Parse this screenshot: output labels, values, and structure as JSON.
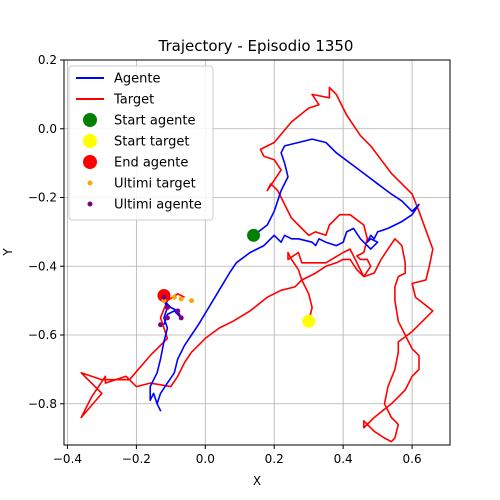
{
  "chart_data": {
    "type": "line",
    "title": "Trajectory - Episodio 1350",
    "xlabel": "X",
    "ylabel": "Y",
    "xlim": [
      -0.41,
      0.71
    ],
    "ylim": [
      -0.92,
      0.2
    ],
    "xticks": [
      -0.4,
      -0.2,
      0.0,
      0.2,
      0.4,
      0.6
    ],
    "xtick_labels": [
      "−0.4",
      "−0.2",
      "0.0",
      "0.2",
      "0.4",
      "0.6"
    ],
    "yticks": [
      0.2,
      0.0,
      -0.2,
      -0.4,
      -0.6,
      -0.8
    ],
    "ytick_labels": [
      "0.2",
      "0.0",
      "−0.2",
      "−0.4",
      "−0.6",
      "−0.8"
    ],
    "grid": true,
    "legend_position": "top-left",
    "series": [
      {
        "name": "Agente",
        "color": "#0000ff",
        "kind": "line",
        "points": [
          [
            0.14,
            -0.31
          ],
          [
            0.18,
            -0.28
          ],
          [
            0.2,
            -0.24
          ],
          [
            0.22,
            -0.18
          ],
          [
            0.24,
            -0.14
          ],
          [
            0.23,
            -0.1
          ],
          [
            0.22,
            -0.07
          ],
          [
            0.23,
            -0.05
          ],
          [
            0.27,
            -0.04
          ],
          [
            0.31,
            -0.03
          ],
          [
            0.35,
            -0.04
          ],
          [
            0.38,
            -0.07
          ],
          [
            0.42,
            -0.1
          ],
          [
            0.46,
            -0.13
          ],
          [
            0.5,
            -0.16
          ],
          [
            0.54,
            -0.19
          ],
          [
            0.57,
            -0.21
          ],
          [
            0.6,
            -0.24
          ],
          [
            0.62,
            -0.22
          ],
          [
            0.6,
            -0.25
          ],
          [
            0.57,
            -0.27
          ],
          [
            0.53,
            -0.29
          ],
          [
            0.5,
            -0.3
          ],
          [
            0.49,
            -0.32
          ],
          [
            0.48,
            -0.31
          ],
          [
            0.47,
            -0.33
          ],
          [
            0.48,
            -0.32
          ],
          [
            0.5,
            -0.33
          ],
          [
            0.48,
            -0.35
          ],
          [
            0.45,
            -0.32
          ],
          [
            0.43,
            -0.29
          ],
          [
            0.41,
            -0.3
          ],
          [
            0.4,
            -0.33
          ],
          [
            0.38,
            -0.34
          ],
          [
            0.35,
            -0.33
          ],
          [
            0.33,
            -0.32
          ],
          [
            0.32,
            -0.34
          ],
          [
            0.31,
            -0.33
          ],
          [
            0.27,
            -0.32
          ],
          [
            0.25,
            -0.32
          ],
          [
            0.23,
            -0.31
          ],
          [
            0.22,
            -0.33
          ],
          [
            0.2,
            -0.31
          ],
          [
            0.17,
            -0.34
          ],
          [
            0.13,
            -0.36
          ],
          [
            0.09,
            -0.39
          ],
          [
            0.07,
            -0.42
          ],
          [
            0.04,
            -0.47
          ],
          [
            0.01,
            -0.52
          ],
          [
            -0.02,
            -0.57
          ],
          [
            -0.04,
            -0.6
          ],
          [
            -0.06,
            -0.63
          ],
          [
            -0.08,
            -0.67
          ],
          [
            -0.09,
            -0.71
          ],
          [
            -0.11,
            -0.74
          ],
          [
            -0.13,
            -0.77
          ],
          [
            -0.14,
            -0.8
          ],
          [
            -0.13,
            -0.82
          ],
          [
            -0.14,
            -0.8
          ],
          [
            -0.15,
            -0.77
          ],
          [
            -0.16,
            -0.79
          ],
          [
            -0.16,
            -0.75
          ],
          [
            -0.14,
            -0.71
          ],
          [
            -0.13,
            -0.67
          ],
          [
            -0.12,
            -0.62
          ],
          [
            -0.11,
            -0.58
          ],
          [
            -0.12,
            -0.55
          ],
          [
            -0.11,
            -0.52
          ],
          [
            -0.12,
            -0.5
          ],
          [
            -0.1,
            -0.52
          ],
          [
            -0.08,
            -0.53
          ],
          [
            -0.07,
            -0.55
          ],
          [
            -0.09,
            -0.53
          ],
          [
            -0.11,
            -0.54
          ],
          [
            -0.12,
            -0.57
          ]
        ]
      },
      {
        "name": "Target",
        "color": "#ff0000",
        "kind": "line",
        "points": [
          [
            0.3,
            -0.56
          ],
          [
            0.31,
            -0.52
          ],
          [
            0.3,
            -0.48
          ],
          [
            0.28,
            -0.44
          ],
          [
            0.27,
            -0.41
          ],
          [
            0.25,
            -0.38
          ],
          [
            0.24,
            -0.36
          ],
          [
            0.24,
            -0.38
          ],
          [
            0.27,
            -0.36
          ],
          [
            0.28,
            -0.39
          ],
          [
            0.35,
            -0.39
          ],
          [
            0.4,
            -0.36
          ],
          [
            0.42,
            -0.35
          ],
          [
            0.44,
            -0.39
          ],
          [
            0.46,
            -0.43
          ],
          [
            0.48,
            -0.4
          ],
          [
            0.47,
            -0.38
          ],
          [
            0.45,
            -0.38
          ],
          [
            0.44,
            -0.37
          ],
          [
            0.46,
            -0.36
          ],
          [
            0.47,
            -0.32
          ],
          [
            0.46,
            -0.28
          ],
          [
            0.42,
            -0.25
          ],
          [
            0.39,
            -0.25
          ],
          [
            0.36,
            -0.28
          ],
          [
            0.35,
            -0.31
          ],
          [
            0.32,
            -0.3
          ],
          [
            0.3,
            -0.31
          ],
          [
            0.27,
            -0.28
          ],
          [
            0.25,
            -0.26
          ],
          [
            0.23,
            -0.22
          ],
          [
            0.21,
            -0.18
          ],
          [
            0.19,
            -0.16
          ],
          [
            0.18,
            -0.18
          ],
          [
            0.2,
            -0.15
          ],
          [
            0.22,
            -0.12
          ],
          [
            0.2,
            -0.09
          ],
          [
            0.17,
            -0.08
          ],
          [
            0.16,
            -0.06
          ],
          [
            0.2,
            -0.04
          ],
          [
            0.25,
            0.02
          ],
          [
            0.3,
            0.06
          ],
          [
            0.33,
            0.07
          ],
          [
            0.31,
            0.1
          ],
          [
            0.36,
            0.09
          ],
          [
            0.36,
            0.12
          ],
          [
            0.38,
            0.1
          ],
          [
            0.41,
            0.04
          ],
          [
            0.45,
            -0.02
          ],
          [
            0.48,
            -0.05
          ],
          [
            0.51,
            -0.09
          ],
          [
            0.54,
            -0.13
          ],
          [
            0.58,
            -0.17
          ],
          [
            0.6,
            -0.19
          ],
          [
            0.62,
            -0.24
          ],
          [
            0.66,
            -0.35
          ],
          [
            0.65,
            -0.4
          ],
          [
            0.64,
            -0.44
          ],
          [
            0.6,
            -0.45
          ],
          [
            0.61,
            -0.49
          ],
          [
            0.66,
            -0.53
          ],
          [
            0.64,
            -0.55
          ],
          [
            0.6,
            -0.59
          ],
          [
            0.56,
            -0.62
          ],
          [
            0.56,
            -0.65
          ],
          [
            0.55,
            -0.7
          ],
          [
            0.53,
            -0.75
          ],
          [
            0.52,
            -0.8
          ],
          [
            0.54,
            -0.84
          ],
          [
            0.56,
            -0.86
          ],
          [
            0.55,
            -0.9
          ],
          [
            0.54,
            -0.91
          ],
          [
            0.52,
            -0.9
          ],
          [
            0.49,
            -0.88
          ],
          [
            0.46,
            -0.85
          ],
          [
            0.46,
            -0.87
          ],
          [
            0.49,
            -0.84
          ],
          [
            0.54,
            -0.8
          ],
          [
            0.58,
            -0.76
          ],
          [
            0.6,
            -0.72
          ],
          [
            0.62,
            -0.7
          ],
          [
            0.62,
            -0.66
          ],
          [
            0.6,
            -0.64
          ],
          [
            0.58,
            -0.6
          ],
          [
            0.56,
            -0.56
          ],
          [
            0.55,
            -0.5
          ],
          [
            0.55,
            -0.46
          ],
          [
            0.56,
            -0.43
          ],
          [
            0.58,
            -0.42
          ],
          [
            0.58,
            -0.39
          ],
          [
            0.57,
            -0.34
          ],
          [
            0.55,
            -0.32
          ],
          [
            0.53,
            -0.35
          ],
          [
            0.51,
            -0.38
          ],
          [
            0.49,
            -0.42
          ],
          [
            0.46,
            -0.43
          ],
          [
            0.44,
            -0.41
          ],
          [
            0.42,
            -0.38
          ],
          [
            0.4,
            -0.38
          ],
          [
            0.38,
            -0.39
          ],
          [
            0.35,
            -0.4
          ],
          [
            0.32,
            -0.42
          ],
          [
            0.28,
            -0.44
          ],
          [
            0.26,
            -0.46
          ],
          [
            0.22,
            -0.47
          ],
          [
            0.18,
            -0.49
          ],
          [
            0.13,
            -0.53
          ],
          [
            0.08,
            -0.56
          ],
          [
            0.04,
            -0.58
          ],
          [
            0.0,
            -0.61
          ],
          [
            -0.02,
            -0.63
          ],
          [
            -0.04,
            -0.65
          ],
          [
            -0.06,
            -0.68
          ],
          [
            -0.08,
            -0.72
          ],
          [
            -0.1,
            -0.75
          ],
          [
            -0.16,
            -0.74
          ],
          [
            -0.2,
            -0.75
          ],
          [
            -0.23,
            -0.72
          ],
          [
            -0.29,
            -0.74
          ],
          [
            -0.29,
            -0.72
          ],
          [
            -0.33,
            -0.78
          ],
          [
            -0.36,
            -0.84
          ],
          [
            -0.3,
            -0.77
          ],
          [
            -0.36,
            -0.71
          ],
          [
            -0.3,
            -0.73
          ],
          [
            -0.22,
            -0.73
          ],
          [
            -0.16,
            -0.66
          ],
          [
            -0.11,
            -0.61
          ],
          [
            -0.13,
            -0.55
          ],
          [
            -0.11,
            -0.5
          ],
          [
            -0.08,
            -0.48
          ],
          [
            -0.06,
            -0.49
          ]
        ]
      },
      {
        "name": "Start agente",
        "color": "#008000",
        "kind": "marker",
        "points": [
          [
            0.14,
            -0.31
          ]
        ]
      },
      {
        "name": "Start target",
        "color": "#ffff00",
        "kind": "marker",
        "points": [
          [
            0.3,
            -0.56
          ]
        ]
      },
      {
        "name": "End agente",
        "color": "#ff0000",
        "kind": "marker",
        "points": [
          [
            -0.12,
            -0.485
          ]
        ]
      },
      {
        "name": "Ultimi target",
        "color": "#ffa500",
        "kind": "scatter",
        "points": [
          [
            -0.12,
            -0.5
          ],
          [
            -0.09,
            -0.49
          ],
          [
            -0.07,
            -0.495
          ],
          [
            -0.04,
            -0.5
          ]
        ]
      },
      {
        "name": "Ultimi agente",
        "color": "#800080",
        "kind": "scatter",
        "points": [
          [
            -0.12,
            -0.49
          ],
          [
            -0.11,
            -0.52
          ],
          [
            -0.08,
            -0.53
          ],
          [
            -0.07,
            -0.55
          ],
          [
            -0.11,
            -0.55
          ],
          [
            -0.13,
            -0.57
          ]
        ]
      }
    ]
  }
}
